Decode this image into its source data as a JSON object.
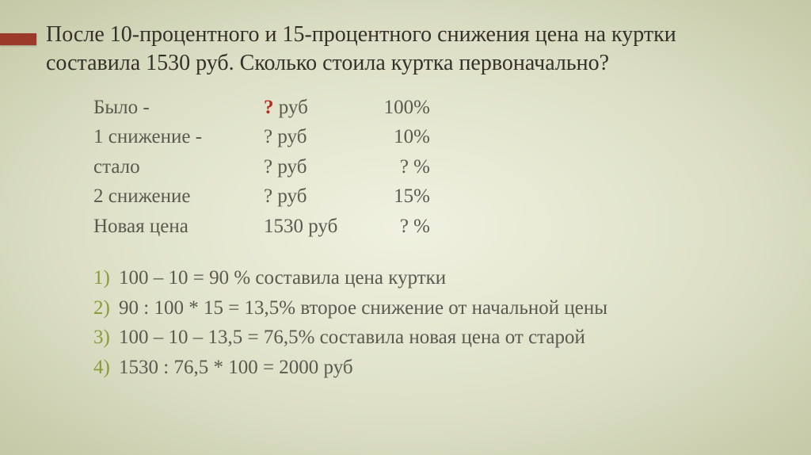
{
  "colors": {
    "background_inner": "#f0f1e0",
    "background_outer": "#c4c8a5",
    "accent_bar": "#9b3a2a",
    "text": "#3a3830",
    "muted_text": "#5a5950",
    "highlight": "#b12d1f",
    "step_number": "#8a9a3a"
  },
  "title": {
    "line1": "После 10-процентного и 15-процентного снижения цена на куртки",
    "line2": "составила 1530 руб. Сколько стоила куртка первоначально?"
  },
  "table": {
    "rows": [
      {
        "label": "Было -",
        "value_prefix": "",
        "value_q": "?",
        "value_unit": " руб",
        "q_is_red": true,
        "percent": "100%"
      },
      {
        "label": "1 снижение  -",
        "value_prefix": "",
        "value_q": "?",
        "value_unit": " руб",
        "q_is_red": false,
        "percent": "10%"
      },
      {
        "label": "стало",
        "value_prefix": "",
        "value_q": "?",
        "value_unit": " руб",
        "q_is_red": false,
        "percent": "? %"
      },
      {
        "label": "2 снижение",
        "value_prefix": "",
        "value_q": "?",
        "value_unit": " руб",
        "q_is_red": false,
        "percent": "15%"
      },
      {
        "label": "Новая цена",
        "value_prefix": "1530",
        "value_q": "",
        "value_unit": " руб",
        "q_is_red": false,
        "percent": "? %"
      }
    ]
  },
  "steps": [
    {
      "n": "1)",
      "text": "  100 – 10  = 90 % составила цена куртки"
    },
    {
      "n": "2)",
      "text": "   90 : 100 * 15 = 13,5% второе снижение от начальной цены"
    },
    {
      "n": "3)",
      "text": "  100 – 10 – 13,5 = 76,5% составила новая цена от старой"
    },
    {
      "n": "4)",
      "text": "  1530 : 76,5 * 100 = 2000 руб"
    }
  ]
}
